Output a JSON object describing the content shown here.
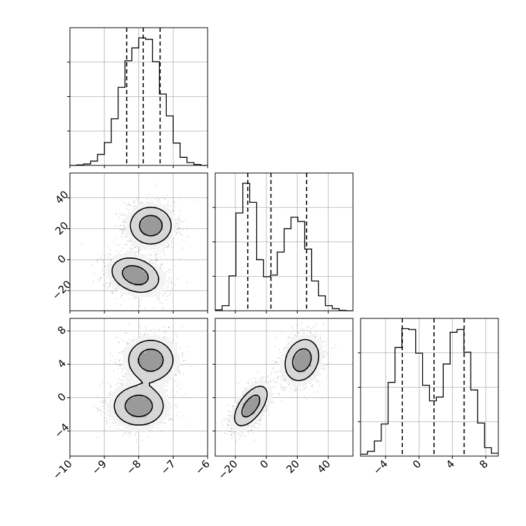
{
  "chart_data": {
    "type": "corner",
    "xlabel": "",
    "ylabel": "",
    "grid": true,
    "legend": "none",
    "colors": {
      "contour": "#000000",
      "points": "#555555",
      "hist": "#000000",
      "grid": "#b0b0b0"
    },
    "parameters": [
      {
        "range": [
          -10,
          -6
        ],
        "ticks": [
          -10,
          -9,
          -8,
          -7,
          -6
        ],
        "tick_labels": [
          "−10",
          "−9",
          "−8",
          "−7",
          "−6"
        ],
        "quantiles": [
          -8.35,
          -7.87,
          -7.38
        ],
        "hist_bins": [
          -10,
          -9.8,
          -9.6,
          -9.4,
          -9.2,
          -9.0,
          -8.8,
          -8.6,
          -8.4,
          -8.2,
          -8.0,
          -7.8,
          -7.6,
          -7.4,
          -7.2,
          -7.0,
          -6.8,
          -6.6,
          -6.4,
          -6.2,
          -6.0
        ],
        "hist_counts": [
          0,
          1,
          3,
          9,
          23,
          48,
          98,
          164,
          220,
          247,
          268,
          265,
          218,
          150,
          104,
          47,
          17,
          6,
          2,
          0
        ]
      },
      {
        "range": [
          -33,
          56
        ],
        "ticks": [
          -20,
          0,
          20,
          40
        ],
        "tick_labels": [
          "−20",
          "0",
          "20",
          "40"
        ],
        "quantiles": [
          -12,
          3,
          26
        ],
        "hist_bins": [
          -33,
          -28.55,
          -24.1,
          -19.65,
          -15.2,
          -10.75,
          -6.3,
          -1.85,
          2.6,
          7.05,
          11.5,
          15.95,
          20.4,
          24.85,
          29.3,
          33.75,
          38.2,
          42.65,
          47.1,
          51.55,
          56
        ],
        "hist_counts": [
          2,
          12,
          82,
          230,
          300,
          255,
          120,
          80,
          84,
          138,
          193,
          220,
          210,
          145,
          70,
          35,
          12,
          5,
          1,
          0
        ]
      },
      {
        "range": [
          -7,
          9.5
        ],
        "ticks": [
          -4,
          0,
          4,
          8
        ],
        "tick_labels": [
          "−4",
          "0",
          "4",
          "8"
        ],
        "quantiles": [
          -2,
          1.8,
          5.4
        ],
        "hist_bins": [
          -7,
          -6.175,
          -5.35,
          -4.525,
          -3.7,
          -2.875,
          -2.05,
          -1.225,
          -0.4,
          0.425,
          1.25,
          2.075,
          2.9,
          3.725,
          4.55,
          5.375,
          6.2,
          7.025,
          7.85,
          8.675,
          9.5
        ],
        "hist_counts": [
          4,
          10,
          32,
          68,
          156,
          230,
          270,
          268,
          218,
          150,
          117,
          125,
          195,
          262,
          268,
          220,
          140,
          70,
          18,
          6
        ]
      }
    ],
    "pairs": [
      {
        "x": 0,
        "y": 1,
        "modes": [
          {
            "mean": [
              -8.1,
              -10
            ],
            "sd": [
              0.4,
              6.5
            ],
            "corr": -0.25,
            "weight": 0.5
          },
          {
            "mean": [
              -7.65,
              22
            ],
            "sd": [
              0.35,
              7.0
            ],
            "corr": 0.0,
            "weight": 0.5
          }
        ]
      },
      {
        "x": 0,
        "y": 2,
        "modes": [
          {
            "mean": [
              -8.0,
              -1.0
            ],
            "sd": [
              0.42,
              1.35
            ],
            "corr": 0.0,
            "weight": 0.5
          },
          {
            "mean": [
              -7.65,
              4.5
            ],
            "sd": [
              0.38,
              1.4
            ],
            "corr": 0.0,
            "weight": 0.5
          }
        ]
      },
      {
        "x": 1,
        "y": 2,
        "modes": [
          {
            "mean": [
              -10,
              -1.0
            ],
            "sd": [
              6.2,
              1.4
            ],
            "corr": 0.6,
            "weight": 0.5
          },
          {
            "mean": [
              23,
              4.5
            ],
            "sd": [
              6.4,
              1.45
            ],
            "corr": 0.2,
            "weight": 0.5
          }
        ]
      }
    ]
  }
}
